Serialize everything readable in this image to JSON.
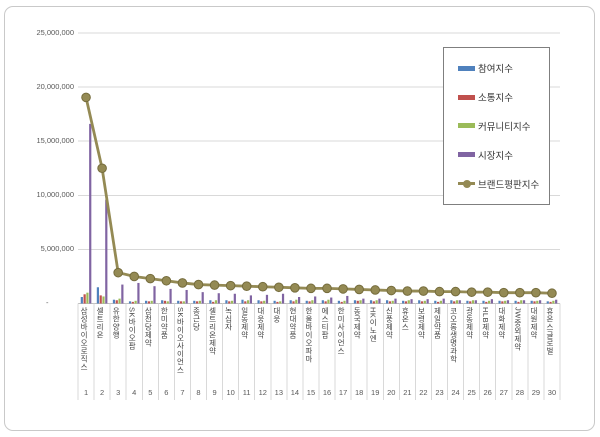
{
  "window": {
    "background": "#ffffff",
    "frame_border_color": "#c9c9c9"
  },
  "chart_data": {
    "type": "combo",
    "title": "",
    "subtitle": "",
    "legend_position": "top-right",
    "grid": true,
    "categories": [
      "삼성바이오로직스",
      "셀트리온",
      "유한양행",
      "SK바이오팜",
      "삼천당제약",
      "한미약품",
      "SK바이오사이언스",
      "종근당",
      "셀트리온제약",
      "녹십자",
      "일동제약",
      "대웅제약",
      "대웅",
      "현대약품",
      "한올바이오파마",
      "에스티팜",
      "한미사이언스",
      "동국제약",
      "HK이노엔",
      "신풍제약",
      "휴온스",
      "보령제약",
      "제일약품",
      "코오롱생명과학",
      "광동제약",
      "HLB제약",
      "대화제약",
      "JW중외제약",
      "대원제약",
      "휴온스글로벌"
    ],
    "ranks": [
      "1",
      "2",
      "3",
      "4",
      "5",
      "6",
      "7",
      "8",
      "9",
      "10",
      "11",
      "12",
      "13",
      "14",
      "15",
      "16",
      "17",
      "18",
      "19",
      "20",
      "21",
      "22",
      "23",
      "24",
      "25",
      "26",
      "27",
      "28",
      "29",
      "30"
    ],
    "y_axis": {
      "min": 0,
      "max": 25000000,
      "step": 5000000,
      "ticks": [
        {
          "value": 25000000,
          "label": "25,000,000"
        },
        {
          "value": 20000000,
          "label": "20,000,000"
        },
        {
          "value": 15000000,
          "label": "15,000,000"
        },
        {
          "value": 10000000,
          "label": "10,000,000"
        },
        {
          "value": 5000000,
          "label": "5,000,000"
        },
        {
          "value": 0,
          "label": "-"
        }
      ],
      "gridline_color": "#d9d9d9",
      "axis_line_color": "#bfbfbf",
      "tick_label_color": "#595959"
    },
    "x_axis": {
      "label_color": "#404040",
      "separator_color": "#d9d9d9"
    },
    "legend": {
      "border_color": "#7f7f7f",
      "background": "#ffffff",
      "text_color": "#333333"
    },
    "series": [
      {
        "id": "participation",
        "name": "참여지수",
        "type": "bar",
        "color": "#4F81BD",
        "values": [
          600000,
          1500000,
          350000,
          200000,
          250000,
          300000,
          250000,
          250000,
          300000,
          300000,
          350000,
          300000,
          250000,
          300000,
          250000,
          300000,
          250000,
          300000,
          300000,
          300000,
          250000,
          300000,
          250000,
          300000,
          250000,
          250000,
          250000,
          250000,
          250000,
          200000
        ]
      },
      {
        "id": "communication",
        "name": "소통지수",
        "type": "bar",
        "color": "#C0504D",
        "values": [
          850000,
          750000,
          300000,
          150000,
          200000,
          250000,
          200000,
          200000,
          150000,
          200000,
          200000,
          200000,
          150000,
          200000,
          200000,
          200000,
          150000,
          250000,
          200000,
          200000,
          200000,
          200000,
          150000,
          200000,
          200000,
          150000,
          200000,
          150000,
          200000,
          150000
        ]
      },
      {
        "id": "community",
        "name": "커뮤니티지수",
        "type": "bar",
        "color": "#9BBB59",
        "values": [
          1000000,
          650000,
          450000,
          250000,
          250000,
          200000,
          200000,
          250000,
          300000,
          250000,
          300000,
          250000,
          200000,
          350000,
          300000,
          350000,
          250000,
          300000,
          300000,
          250000,
          300000,
          250000,
          250000,
          300000,
          300000,
          250000,
          250000,
          300000,
          250000,
          250000
        ]
      },
      {
        "id": "market",
        "name": "시장지수",
        "type": "bar",
        "color": "#8064A2",
        "values": [
          16600000,
          9600000,
          1750000,
          1900000,
          1600000,
          1350000,
          1250000,
          1050000,
          950000,
          900000,
          750000,
          800000,
          900000,
          600000,
          650000,
          550000,
          700000,
          450000,
          450000,
          450000,
          400000,
          400000,
          450000,
          300000,
          300000,
          400000,
          300000,
          300000,
          300000,
          350000
        ]
      },
      {
        "id": "brand-reputation",
        "name": "브랜드평판지수",
        "type": "line",
        "color": "#948A54",
        "marker": "circle",
        "marker_border": "#756C3C",
        "values": [
          19050000,
          12500000,
          2850000,
          2500000,
          2300000,
          2100000,
          1900000,
          1750000,
          1700000,
          1650000,
          1600000,
          1550000,
          1500000,
          1450000,
          1400000,
          1400000,
          1350000,
          1300000,
          1250000,
          1200000,
          1150000,
          1150000,
          1100000,
          1100000,
          1050000,
          1050000,
          1000000,
          1000000,
          1000000,
          950000
        ]
      }
    ]
  }
}
